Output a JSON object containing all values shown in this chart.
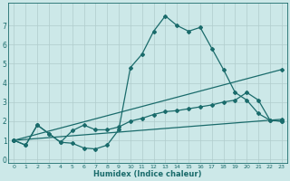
{
  "xlabel": "Humidex (Indice chaleur)",
  "xlim": [
    -0.5,
    23.5
  ],
  "ylim": [
    -0.2,
    8.2
  ],
  "xticks": [
    0,
    1,
    2,
    3,
    4,
    5,
    6,
    7,
    8,
    9,
    10,
    11,
    12,
    13,
    14,
    15,
    16,
    17,
    18,
    19,
    20,
    21,
    22,
    23
  ],
  "yticks": [
    0,
    1,
    2,
    3,
    4,
    5,
    6,
    7
  ],
  "background_color": "#cce8e8",
  "line_color": "#1a6b6b",
  "grid_color": "#b0cccc",
  "lines": [
    {
      "x": [
        0,
        1,
        2,
        3,
        4,
        5,
        6,
        7,
        8,
        9,
        10,
        11,
        12,
        13,
        14,
        15,
        16,
        17,
        18,
        19,
        20,
        21,
        22,
        23
      ],
      "y": [
        1.0,
        0.75,
        1.8,
        1.35,
        0.9,
        0.85,
        0.6,
        0.55,
        0.75,
        1.55,
        4.8,
        5.5,
        6.7,
        7.5,
        7.0,
        6.7,
        6.9,
        5.8,
        4.7,
        3.5,
        3.1,
        2.4,
        2.05,
        2.0
      ]
    },
    {
      "x": [
        0,
        23
      ],
      "y": [
        1.0,
        4.7
      ]
    },
    {
      "x": [
        0,
        23
      ],
      "y": [
        1.0,
        2.1
      ]
    },
    {
      "x": [
        0,
        1,
        2,
        3,
        4,
        5,
        6,
        7,
        8,
        9,
        10,
        11,
        12,
        13,
        14,
        15,
        16,
        17,
        18,
        19,
        20,
        21,
        22,
        23
      ],
      "y": [
        1.0,
        0.75,
        1.8,
        1.35,
        0.9,
        1.5,
        1.8,
        1.55,
        1.55,
        1.7,
        2.0,
        2.15,
        2.35,
        2.5,
        2.55,
        2.65,
        2.75,
        2.85,
        3.0,
        3.1,
        3.5,
        3.1,
        2.05,
        2.0
      ]
    }
  ]
}
